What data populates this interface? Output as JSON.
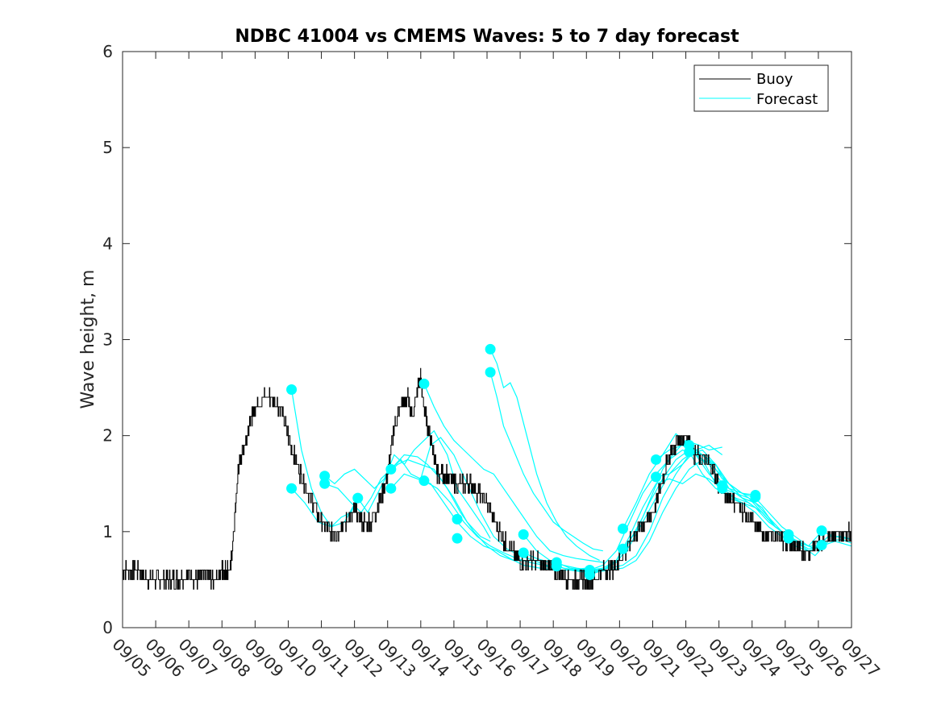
{
  "chart_data": {
    "type": "line",
    "title": "NDBC 41004 vs CMEMS Waves: 5 to 7 day forecast",
    "xlabel": "",
    "ylabel": "Wave height, m",
    "ylim": [
      0,
      6
    ],
    "yticks": [
      "0",
      "1",
      "2",
      "3",
      "4",
      "5",
      "6"
    ],
    "xlim": [
      0,
      22
    ],
    "xtick_labels": [
      "09/05",
      "09/06",
      "09/07",
      "09/08",
      "09/09",
      "09/10",
      "09/11",
      "09/12",
      "09/13",
      "09/14",
      "09/15",
      "09/16",
      "09/17",
      "09/18",
      "09/19",
      "09/20",
      "09/21",
      "09/22",
      "09/23",
      "09/24",
      "09/25",
      "09/26",
      "09/27"
    ],
    "legend": {
      "position": "top-right",
      "entries": [
        "Buoy",
        "Forecast"
      ]
    },
    "colors": {
      "buoy": "#000000",
      "forecast": "#00ffff",
      "axes": "#262626"
    },
    "buoy_series": {
      "name": "Buoy",
      "x": [
        0,
        0.25,
        0.5,
        0.75,
        1,
        1.25,
        1.5,
        1.75,
        2,
        2.25,
        2.5,
        2.75,
        3,
        3.1,
        3.25,
        3.4,
        3.5,
        3.6,
        3.75,
        3.9,
        4,
        4.25,
        4.5,
        4.75,
        5,
        5.25,
        5.5,
        5.75,
        6,
        6.25,
        6.5,
        6.75,
        7,
        7.25,
        7.5,
        7.75,
        8,
        8.2,
        8.4,
        8.6,
        8.75,
        8.9,
        9,
        9.1,
        9.25,
        9.4,
        9.5,
        9.75,
        10,
        10.25,
        10.5,
        10.75,
        11,
        11.25,
        11.5,
        11.75,
        12,
        12.25,
        12.5,
        12.75,
        13,
        13.25,
        13.5,
        13.75,
        14,
        14.25,
        14.5,
        14.75,
        15,
        15.25,
        15.5,
        15.75,
        16,
        16.25,
        16.5,
        16.75,
        17,
        17.25,
        17.5,
        17.75,
        18,
        18.25,
        18.5,
        18.75,
        19,
        19.25,
        19.5,
        19.75,
        20,
        20.25,
        20.5,
        20.75,
        21,
        21.25,
        21.5,
        21.75,
        22
      ],
      "values": [
        0.6,
        0.6,
        0.6,
        0.5,
        0.5,
        0.5,
        0.5,
        0.5,
        0.55,
        0.5,
        0.55,
        0.5,
        0.6,
        0.6,
        0.6,
        1.2,
        1.7,
        1.8,
        2.0,
        2.2,
        2.3,
        2.4,
        2.4,
        2.3,
        2.0,
        1.7,
        1.5,
        1.3,
        1.1,
        1.0,
        1.0,
        1.1,
        1.2,
        1.1,
        1.1,
        1.3,
        1.6,
        2.1,
        2.3,
        2.4,
        2.2,
        2.5,
        2.6,
        2.3,
        2.0,
        1.8,
        1.6,
        1.6,
        1.5,
        1.5,
        1.5,
        1.4,
        1.3,
        1.1,
        0.9,
        0.8,
        0.7,
        0.7,
        0.7,
        0.65,
        0.6,
        0.55,
        0.5,
        0.5,
        0.5,
        0.5,
        0.6,
        0.6,
        0.7,
        0.85,
        1.0,
        1.1,
        1.2,
        1.5,
        1.8,
        1.95,
        2.0,
        1.8,
        1.75,
        1.7,
        1.5,
        1.35,
        1.3,
        1.2,
        1.1,
        1.0,
        0.95,
        0.95,
        0.9,
        0.85,
        0.8,
        0.8,
        0.9,
        0.95,
        0.95,
        0.95,
        1.0
      ]
    },
    "forecast_series": [
      {
        "name": "Forecast",
        "x": [
          5.1,
          5.4,
          5.7,
          6.0,
          6.3,
          6.6,
          6.9,
          7.1
        ],
        "values": [
          2.48,
          1.85,
          1.45,
          1.2,
          1.05,
          1.15,
          1.2,
          1.35
        ]
      },
      {
        "name": "Forecast",
        "x": [
          5.1,
          5.5,
          5.9,
          6.3,
          6.7,
          7.1
        ],
        "values": [
          1.45,
          1.3,
          1.1,
          1.05,
          1.1,
          1.35
        ]
      },
      {
        "name": "Forecast",
        "x": [
          6.1,
          6.4,
          6.7,
          7.0,
          7.3,
          7.6,
          7.9,
          8.2,
          8.5,
          8.8,
          9.1,
          9.4,
          9.8,
          10.1,
          10.5,
          10.9,
          11.1
        ],
        "values": [
          1.58,
          1.5,
          1.6,
          1.65,
          1.55,
          1.45,
          1.55,
          1.8,
          1.7,
          1.85,
          1.95,
          2.05,
          1.8,
          1.45,
          1.25,
          1.05,
          0.93
        ]
      },
      {
        "name": "Forecast",
        "x": [
          6.1,
          6.5,
          6.9,
          7.2,
          7.5,
          7.8,
          8.1,
          8.5,
          8.9,
          9.2,
          9.6,
          10.0,
          10.4,
          10.8,
          11.1
        ],
        "values": [
          1.5,
          1.45,
          1.3,
          1.2,
          1.35,
          1.55,
          1.65,
          1.8,
          1.78,
          1.7,
          1.55,
          1.35,
          1.1,
          0.95,
          0.9
        ]
      },
      {
        "name": "Forecast",
        "x": [
          7.1,
          7.4,
          7.7,
          8.0,
          8.3,
          8.6,
          9.0,
          9.4,
          9.8,
          10.2,
          10.6,
          11.0,
          11.4,
          11.8,
          12.1
        ],
        "values": [
          1.35,
          1.2,
          1.4,
          1.6,
          1.7,
          1.75,
          1.7,
          1.65,
          1.45,
          1.2,
          1.0,
          0.85,
          0.75,
          0.7,
          0.7
        ]
      },
      {
        "name": "Forecast",
        "x": [
          8.1,
          8.4,
          8.7,
          9.0,
          9.3,
          9.6,
          10.0,
          10.4,
          10.8,
          11.2,
          11.6,
          12.0,
          12.4,
          12.8,
          13.1
        ],
        "values": [
          1.65,
          1.75,
          1.6,
          1.55,
          1.9,
          1.98,
          1.8,
          1.5,
          1.2,
          0.95,
          0.82,
          0.75,
          0.7,
          0.65,
          0.62
        ]
      },
      {
        "name": "Forecast",
        "x": [
          8.1,
          8.5,
          8.9,
          9.3,
          9.7,
          10.1,
          10.5,
          10.9,
          11.3,
          11.7,
          12.1,
          12.6,
          13.1
        ],
        "values": [
          1.45,
          1.6,
          1.55,
          1.5,
          1.3,
          1.1,
          0.95,
          0.85,
          0.8,
          0.72,
          0.65,
          0.62,
          0.6
        ]
      },
      {
        "name": "Forecast",
        "x": [
          9.1,
          9.4,
          9.7,
          10.0,
          10.3,
          10.6,
          10.9,
          11.2,
          11.5,
          11.8,
          12.1,
          12.5,
          12.9,
          13.3,
          13.7,
          14.1,
          14.5
        ],
        "values": [
          2.54,
          2.3,
          2.1,
          1.95,
          1.85,
          1.75,
          1.65,
          1.6,
          1.45,
          1.3,
          1.15,
          0.95,
          0.8,
          0.75,
          0.72,
          0.7,
          0.68
        ]
      },
      {
        "name": "Forecast",
        "x": [
          9.1,
          9.5,
          9.9,
          10.3,
          10.7,
          11.1,
          11.5,
          11.9,
          12.3,
          12.7,
          13.1,
          13.5,
          14.0
        ],
        "values": [
          1.53,
          1.45,
          1.3,
          1.1,
          0.95,
          0.85,
          0.78,
          0.72,
          0.68,
          0.65,
          0.6,
          0.6,
          0.62
        ]
      },
      {
        "name": "Forecast",
        "x": [
          11.1,
          11.3,
          11.5,
          11.7,
          11.9,
          12.2,
          12.5,
          12.8,
          13.1,
          13.4,
          13.7,
          14.1,
          14.4
        ],
        "values": [
          2.9,
          2.75,
          2.5,
          2.55,
          2.4,
          2.0,
          1.6,
          1.3,
          1.1,
          0.95,
          0.85,
          0.75,
          0.7
        ]
      },
      {
        "name": "Forecast",
        "x": [
          11.1,
          11.3,
          11.5,
          11.8,
          12.1,
          12.4,
          12.7,
          13.0,
          13.3,
          13.6,
          13.9,
          14.2,
          14.5
        ],
        "values": [
          2.66,
          2.4,
          2.1,
          1.85,
          1.6,
          1.4,
          1.25,
          1.1,
          1.02,
          0.95,
          0.88,
          0.82,
          0.8
        ]
      },
      {
        "name": "Forecast",
        "x": [
          12.1,
          12.5,
          12.9,
          13.3,
          13.7,
          14.1,
          14.5,
          14.9,
          15.3,
          15.7,
          16.0,
          16.3,
          16.6,
          17.0,
          17.4,
          17.7,
          18.1
        ],
        "values": [
          0.97,
          0.8,
          0.7,
          0.65,
          0.62,
          0.6,
          0.62,
          0.7,
          0.9,
          1.15,
          1.4,
          1.65,
          1.8,
          1.95,
          1.9,
          1.85,
          1.88
        ]
      },
      {
        "name": "Forecast",
        "x": [
          12.1,
          12.5,
          12.9,
          13.3,
          13.7,
          14.1,
          14.5,
          14.9,
          15.3,
          15.7,
          16.1,
          16.5,
          16.9,
          17.3,
          17.7,
          18.1
        ],
        "values": [
          0.78,
          0.72,
          0.68,
          0.62,
          0.6,
          0.58,
          0.6,
          0.68,
          0.85,
          1.1,
          1.35,
          1.6,
          1.75,
          1.85,
          1.9,
          1.8
        ]
      },
      {
        "name": "Forecast",
        "x": [
          13.1,
          13.5,
          13.9,
          14.3,
          14.7,
          15.1,
          15.5,
          15.9,
          16.3,
          16.7,
          17.1,
          17.5,
          17.9,
          18.3,
          18.7,
          19.1
        ],
        "values": [
          0.68,
          0.62,
          0.6,
          0.6,
          0.62,
          0.65,
          0.75,
          1.0,
          1.35,
          1.6,
          1.8,
          1.85,
          1.7,
          1.45,
          1.4,
          1.38
        ]
      },
      {
        "name": "Forecast",
        "x": [
          13.1,
          13.5,
          13.9,
          14.3,
          14.7,
          15.1,
          15.5,
          15.9,
          16.3,
          16.7,
          17.1,
          17.5,
          17.9,
          18.3,
          18.7,
          19.1
        ],
        "values": [
          0.64,
          0.6,
          0.58,
          0.58,
          0.6,
          0.62,
          0.7,
          0.9,
          1.2,
          1.45,
          1.65,
          1.75,
          1.7,
          1.5,
          1.35,
          1.3
        ]
      },
      {
        "name": "Forecast",
        "x": [
          14.1,
          14.5,
          14.9,
          15.3,
          15.7,
          16.1,
          16.5,
          16.9,
          17.3,
          17.7,
          18.1,
          18.5,
          18.9,
          19.3,
          19.7,
          20.1
        ],
        "values": [
          0.6,
          0.65,
          0.8,
          1.1,
          1.4,
          1.6,
          1.75,
          1.85,
          1.8,
          1.6,
          1.45,
          1.35,
          1.3,
          1.2,
          1.05,
          0.95
        ]
      },
      {
        "name": "Forecast",
        "x": [
          14.1,
          14.5,
          14.9,
          15.3,
          15.7,
          16.1,
          16.5,
          16.9,
          17.3,
          17.7,
          18.1,
          18.5,
          18.9,
          19.3,
          19.7,
          20.1
        ],
        "values": [
          0.55,
          0.6,
          0.7,
          0.95,
          1.25,
          1.5,
          1.55,
          1.5,
          1.6,
          1.55,
          1.45,
          1.4,
          1.3,
          1.2,
          1.05,
          0.95
        ]
      },
      {
        "name": "Forecast",
        "x": [
          15.1,
          15.5,
          15.9,
          16.3,
          16.7,
          17.1,
          17.5,
          17.9,
          18.3,
          18.7,
          19.1,
          19.5,
          19.9,
          20.3,
          20.7,
          21.1
        ],
        "values": [
          1.03,
          1.3,
          1.6,
          1.8,
          2.02,
          1.9,
          1.8,
          1.7,
          1.5,
          1.4,
          1.35,
          1.2,
          1.05,
          0.95,
          0.85,
          0.85
        ]
      },
      {
        "name": "Forecast",
        "x": [
          15.1,
          15.5,
          15.9,
          16.3,
          16.7,
          17.1,
          17.5,
          17.9,
          18.3,
          18.7,
          19.1,
          19.5,
          19.9,
          20.3,
          20.7,
          21.1
        ],
        "values": [
          0.82,
          1.0,
          1.3,
          1.55,
          1.75,
          1.85,
          1.8,
          1.65,
          1.5,
          1.35,
          1.3,
          1.15,
          1.0,
          0.9,
          0.82,
          0.85
        ]
      },
      {
        "name": "Forecast",
        "x": [
          16.1,
          16.5,
          16.9,
          17.3,
          17.7,
          18.1,
          18.5,
          18.9,
          19.3,
          19.7,
          20.1,
          20.5,
          20.9,
          21.3,
          21.7,
          22.0
        ],
        "values": [
          1.75,
          1.85,
          1.9,
          1.8,
          1.7,
          1.5,
          1.4,
          1.35,
          1.2,
          1.05,
          0.95,
          0.88,
          0.82,
          0.95,
          0.95,
          0.92
        ]
      },
      {
        "name": "Forecast",
        "x": [
          16.1,
          16.5,
          16.9,
          17.3,
          17.7,
          18.1,
          18.5,
          18.9,
          19.3,
          19.7,
          20.1,
          20.5,
          20.9,
          21.3,
          21.7,
          22.0
        ],
        "values": [
          1.57,
          1.6,
          1.7,
          1.85,
          1.75,
          1.55,
          1.45,
          1.35,
          1.25,
          1.05,
          0.95,
          0.85,
          0.75,
          0.9,
          0.92,
          0.88
        ]
      },
      {
        "name": "Forecast",
        "x": [
          17.1,
          17.5,
          17.9,
          18.3,
          18.7,
          19.1,
          19.5,
          19.9,
          20.3,
          20.7,
          21.1,
          21.5,
          22.0
        ],
        "values": [
          1.9,
          1.75,
          1.5,
          1.35,
          1.3,
          1.25,
          1.1,
          1.0,
          0.9,
          0.85,
          1.0,
          0.95,
          0.92
        ]
      },
      {
        "name": "Forecast",
        "x": [
          17.1,
          17.5,
          17.9,
          18.3,
          18.7,
          19.1,
          19.5,
          19.9,
          20.3,
          20.7,
          21.1,
          21.5,
          22.0
        ],
        "values": [
          1.83,
          1.6,
          1.45,
          1.38,
          1.3,
          1.2,
          1.05,
          0.95,
          0.85,
          0.8,
          0.85,
          0.9,
          0.85
        ]
      }
    ],
    "forecast_markers": {
      "x": [
        5.1,
        5.1,
        6.1,
        6.1,
        7.1,
        8.1,
        8.1,
        9.1,
        9.1,
        10.1,
        10.1,
        11.1,
        11.1,
        12.1,
        12.1,
        13.1,
        13.1,
        14.1,
        14.1,
        15.1,
        15.1,
        16.1,
        16.1,
        17.1,
        17.1,
        18.1,
        18.1,
        19.1,
        19.1,
        20.1,
        20.1,
        21.1,
        21.1
      ],
      "values": [
        2.48,
        1.45,
        1.58,
        1.5,
        1.35,
        1.65,
        1.45,
        2.54,
        1.53,
        1.13,
        0.93,
        2.9,
        2.66,
        0.97,
        0.78,
        0.68,
        0.64,
        0.6,
        0.55,
        1.03,
        0.82,
        1.75,
        1.57,
        1.9,
        1.83,
        1.48,
        1.45,
        1.38,
        1.36,
        0.97,
        0.93,
        1.01,
        0.86
      ]
    }
  }
}
